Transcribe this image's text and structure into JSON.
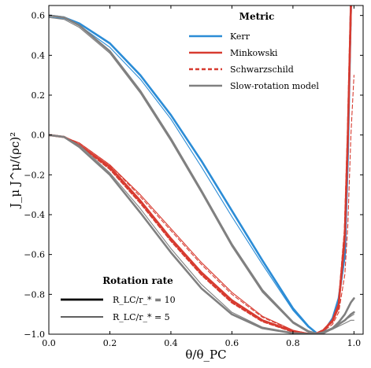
{
  "chart_data": {
    "type": "line",
    "xlabel": "θ/θ_PC",
    "ylabel": "J_μ J^μ/(ρc)²",
    "xlim": [
      0.0,
      1.03
    ],
    "ylim": [
      -1.0,
      0.65
    ],
    "xticks": [
      0.0,
      0.2,
      0.4,
      0.6,
      0.8,
      1.0
    ],
    "xtick_labels": [
      "0.0",
      "0.2",
      "0.4",
      "0.6",
      "0.8",
      "1.0"
    ],
    "yticks": [
      -1.0,
      -0.8,
      -0.6,
      -0.4,
      -0.2,
      0.0,
      0.2,
      0.4,
      0.6
    ],
    "ytick_labels": [
      "−1.0",
      "−0.8",
      "−0.6",
      "−0.4",
      "−0.2",
      "0.0",
      "0.2",
      "0.4",
      "0.6"
    ],
    "grid": false,
    "legends": [
      {
        "title": "Metric",
        "placement": "upper-right",
        "entries": [
          {
            "label": "Kerr",
            "color": "#2b8cd6",
            "style": "solid"
          },
          {
            "label": "Minkowski",
            "color": "#d73b30",
            "style": "solid"
          },
          {
            "label": "Schwarzschild",
            "color": "#d73b30",
            "style": "dashed"
          },
          {
            "label": "Slow-rotation model",
            "color": "#808080",
            "style": "solid"
          }
        ]
      },
      {
        "title": "Rotation rate",
        "placement": "lower-left",
        "entries": [
          {
            "label": "R_LC/r_* = 10",
            "width": "thick"
          },
          {
            "label": "R_LC/r_* = 5",
            "width": "thin"
          }
        ]
      }
    ],
    "series": [
      {
        "metric": "Kerr",
        "rotation": "R_LC/r_* = 10",
        "color": "#2b8cd6",
        "style": "solid",
        "width": "thick",
        "x": [
          0.0,
          0.05,
          0.1,
          0.2,
          0.3,
          0.4,
          0.5,
          0.6,
          0.7,
          0.8,
          0.85,
          0.88,
          0.9,
          0.93,
          0.95,
          0.97,
          0.98,
          0.99
        ],
        "y": [
          0.6,
          0.59,
          0.56,
          0.46,
          0.3,
          0.1,
          -0.13,
          -0.38,
          -0.63,
          -0.87,
          -0.96,
          -0.998,
          -0.99,
          -0.92,
          -0.82,
          -0.6,
          -0.1,
          0.65
        ]
      },
      {
        "metric": "Kerr",
        "rotation": "R_LC/r_* = 5",
        "color": "#2b8cd6",
        "style": "solid",
        "width": "thin",
        "x": [
          0.0,
          0.05,
          0.1,
          0.2,
          0.3,
          0.4,
          0.5,
          0.6,
          0.7,
          0.8,
          0.85,
          0.88,
          0.9,
          0.93,
          0.95,
          0.97,
          0.98,
          0.99
        ],
        "y": [
          0.59,
          0.585,
          0.55,
          0.44,
          0.28,
          0.08,
          -0.16,
          -0.41,
          -0.65,
          -0.88,
          -0.965,
          -0.998,
          -0.99,
          -0.93,
          -0.84,
          -0.62,
          -0.15,
          0.65
        ]
      },
      {
        "metric": "Minkowski",
        "rotation": "R_LC/r_* = 10",
        "color": "#d73b30",
        "style": "solid",
        "width": "thick",
        "x": [
          0.0,
          0.05,
          0.1,
          0.2,
          0.3,
          0.4,
          0.5,
          0.6,
          0.7,
          0.8,
          0.85,
          0.88,
          0.9,
          0.93,
          0.95,
          0.97,
          0.98,
          0.99
        ],
        "y": [
          0.0,
          -0.01,
          -0.05,
          -0.16,
          -0.33,
          -0.52,
          -0.69,
          -0.83,
          -0.93,
          -0.985,
          -0.998,
          -0.995,
          -0.98,
          -0.93,
          -0.85,
          -0.5,
          0.0,
          0.65
        ]
      },
      {
        "metric": "Minkowski",
        "rotation": "R_LC/r_* = 5",
        "color": "#d73b30",
        "style": "solid",
        "width": "thin",
        "x": [
          0.0,
          0.05,
          0.1,
          0.2,
          0.3,
          0.4,
          0.5,
          0.6,
          0.7,
          0.8,
          0.85,
          0.88,
          0.9,
          0.93,
          0.95,
          0.97,
          0.98,
          0.99
        ],
        "y": [
          0.0,
          -0.01,
          -0.04,
          -0.15,
          -0.3,
          -0.47,
          -0.64,
          -0.79,
          -0.91,
          -0.98,
          -0.997,
          -0.995,
          -0.98,
          -0.94,
          -0.87,
          -0.55,
          -0.1,
          0.65
        ]
      },
      {
        "metric": "Schwarzschild",
        "rotation": "R_LC/r_* = 10",
        "color": "#d73b30",
        "style": "dashed",
        "width": "thick",
        "x": [
          0.0,
          0.05,
          0.1,
          0.2,
          0.3,
          0.4,
          0.5,
          0.6,
          0.7,
          0.8,
          0.85,
          0.88,
          0.9,
          0.93,
          0.95,
          0.97,
          0.98,
          0.99
        ],
        "y": [
          0.0,
          -0.01,
          -0.05,
          -0.17,
          -0.34,
          -0.53,
          -0.7,
          -0.84,
          -0.935,
          -0.987,
          -0.998,
          -0.995,
          -0.98,
          -0.93,
          -0.85,
          -0.48,
          0.0,
          0.65
        ]
      },
      {
        "metric": "Schwarzschild",
        "rotation": "R_LC/r_* = 5",
        "color": "#d73b30",
        "style": "dashed",
        "width": "thin",
        "x": [
          0.0,
          0.05,
          0.1,
          0.2,
          0.3,
          0.4,
          0.5,
          0.6,
          0.7,
          0.8,
          0.85,
          0.88,
          0.9,
          0.93,
          0.95,
          0.97,
          0.98,
          0.99,
          1.0
        ],
        "y": [
          0.0,
          -0.01,
          -0.04,
          -0.15,
          -0.31,
          -0.48,
          -0.65,
          -0.8,
          -0.915,
          -0.982,
          -0.997,
          -0.996,
          -0.985,
          -0.95,
          -0.89,
          -0.7,
          -0.45,
          0.0,
          0.3
        ]
      },
      {
        "metric": "Slow-rotation model",
        "rotation": "R_LC/r_* = 10",
        "color": "#808080",
        "style": "solid",
        "width": "thick",
        "x": [
          0.0,
          0.05,
          0.1,
          0.2,
          0.3,
          0.4,
          0.5,
          0.6,
          0.7,
          0.8,
          0.85,
          0.88,
          0.9,
          0.93,
          0.95,
          0.97,
          0.99,
          1.0
        ],
        "y": [
          0.6,
          0.59,
          0.55,
          0.42,
          0.22,
          -0.02,
          -0.28,
          -0.55,
          -0.78,
          -0.94,
          -0.985,
          -0.999,
          -0.995,
          -0.97,
          -0.94,
          -0.9,
          -0.84,
          -0.82
        ]
      },
      {
        "metric": "Slow-rotation model",
        "rotation": "R_LC/r_* = 5",
        "color": "#808080",
        "style": "solid",
        "width": "thin",
        "x": [
          0.0,
          0.05,
          0.1,
          0.2,
          0.3,
          0.4,
          0.5,
          0.6,
          0.7,
          0.8,
          0.85,
          0.88,
          0.9,
          0.93,
          0.95,
          0.97,
          0.99,
          1.0
        ],
        "y": [
          0.59,
          0.58,
          0.54,
          0.41,
          0.21,
          -0.03,
          -0.29,
          -0.56,
          -0.79,
          -0.945,
          -0.99,
          -1.0,
          -0.995,
          -0.975,
          -0.955,
          -0.93,
          -0.91,
          -0.9
        ]
      },
      {
        "metric": "Slow-rotation model",
        "rotation": "R_LC/r_* = 10",
        "color": "#808080",
        "style": "solid",
        "width": "thick",
        "x": [
          0.0,
          0.05,
          0.1,
          0.2,
          0.3,
          0.4,
          0.5,
          0.6,
          0.7,
          0.8,
          0.85,
          0.88,
          0.9,
          0.93,
          0.95,
          0.97,
          0.99,
          1.0
        ],
        "y": [
          0.0,
          -0.01,
          -0.06,
          -0.2,
          -0.39,
          -0.59,
          -0.77,
          -0.9,
          -0.97,
          -0.995,
          -0.999,
          -0.998,
          -0.99,
          -0.97,
          -0.95,
          -0.93,
          -0.9,
          -0.89
        ]
      },
      {
        "metric": "Slow-rotation model",
        "rotation": "R_LC/r_* = 5",
        "color": "#808080",
        "style": "solid",
        "width": "thin",
        "x": [
          0.0,
          0.05,
          0.1,
          0.2,
          0.3,
          0.4,
          0.5,
          0.6,
          0.7,
          0.8,
          0.85,
          0.88,
          0.9,
          0.93,
          0.95,
          0.97,
          0.99,
          1.0
        ],
        "y": [
          0.0,
          -0.01,
          -0.05,
          -0.19,
          -0.37,
          -0.57,
          -0.75,
          -0.89,
          -0.965,
          -0.993,
          -0.999,
          -0.999,
          -0.992,
          -0.975,
          -0.96,
          -0.945,
          -0.93,
          -0.93
        ]
      }
    ]
  }
}
